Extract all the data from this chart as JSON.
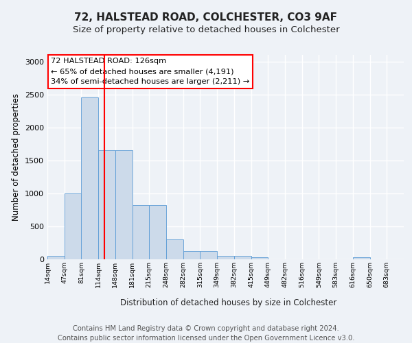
{
  "title1": "72, HALSTEAD ROAD, COLCHESTER, CO3 9AF",
  "title2": "Size of property relative to detached houses in Colchester",
  "xlabel": "Distribution of detached houses by size in Colchester",
  "ylabel": "Number of detached properties",
  "bin_labels": [
    "14sqm",
    "47sqm",
    "81sqm",
    "114sqm",
    "148sqm",
    "181sqm",
    "215sqm",
    "248sqm",
    "282sqm",
    "315sqm",
    "349sqm",
    "382sqm",
    "415sqm",
    "449sqm",
    "482sqm",
    "516sqm",
    "549sqm",
    "583sqm",
    "616sqm",
    "650sqm",
    "683sqm"
  ],
  "bar_heights": [
    50,
    1000,
    2450,
    1650,
    1650,
    820,
    820,
    300,
    120,
    120,
    50,
    50,
    30,
    0,
    0,
    0,
    0,
    0,
    25,
    0,
    0
  ],
  "bar_color": "#ccdaea",
  "bar_edge_color": "#5b9bd5",
  "vline_index": 3.36,
  "vline_color": "red",
  "annotation_text": "72 HALSTEAD ROAD: 126sqm\n← 65% of detached houses are smaller (4,191)\n34% of semi-detached houses are larger (2,211) →",
  "annotation_box_color": "white",
  "annotation_box_edge_color": "red",
  "ylim": [
    0,
    3100
  ],
  "yticks": [
    0,
    500,
    1000,
    1500,
    2000,
    2500,
    3000
  ],
  "footer_line1": "Contains HM Land Registry data © Crown copyright and database right 2024.",
  "footer_line2": "Contains public sector information licensed under the Open Government Licence v3.0.",
  "bg_color": "#eef2f7",
  "plot_bg_color": "#eef2f7",
  "grid_color": "white",
  "title_fontsize": 11,
  "subtitle_fontsize": 9.5,
  "annotation_fontsize": 8.2,
  "footer_fontsize": 7.2
}
